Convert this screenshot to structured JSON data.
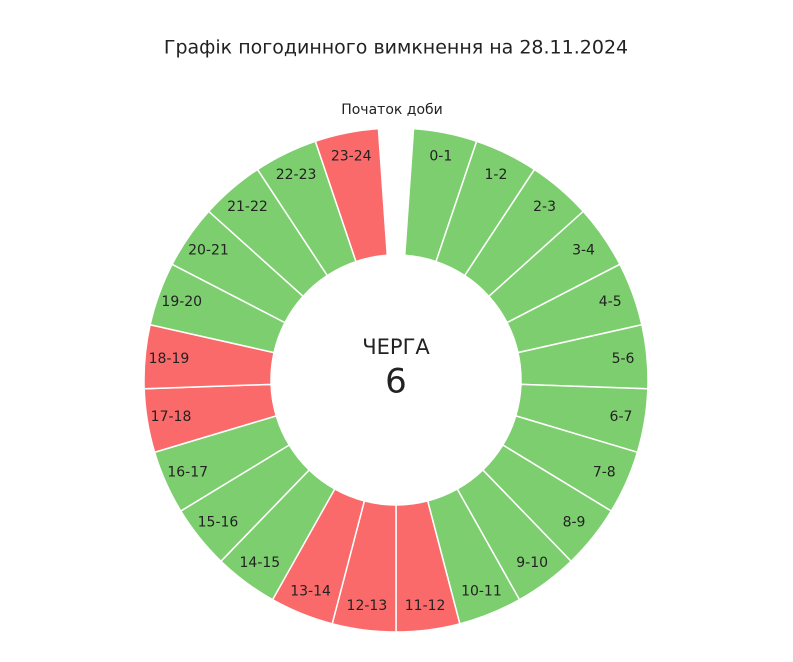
{
  "chart_data": {
    "type": "donut",
    "title": "Графік погодинного вимкнення на 28.11.2024",
    "annotation": "Початок доби",
    "center_label": "ЧЕРГА",
    "center_value": 6,
    "categories": [
      "0-1",
      "1-2",
      "2-3",
      "3-4",
      "4-5",
      "5-6",
      "6-7",
      "7-8",
      "8-9",
      "9-10",
      "10-11",
      "11-12",
      "12-13",
      "13-14",
      "14-15",
      "15-16",
      "16-17",
      "17-18",
      "18-19",
      "19-20",
      "20-21",
      "21-22",
      "22-23",
      "23-24"
    ],
    "values": [
      1,
      1,
      1,
      1,
      1,
      1,
      1,
      1,
      1,
      1,
      1,
      1,
      1,
      1,
      1,
      1,
      1,
      1,
      1,
      1,
      1,
      1,
      1,
      1
    ],
    "colors": [
      "#7dce6e",
      "#7dce6e",
      "#7dce6e",
      "#7dce6e",
      "#7dce6e",
      "#7dce6e",
      "#7dce6e",
      "#7dce6e",
      "#7dce6e",
      "#7dce6e",
      "#7dce6e",
      "#fb6a6a",
      "#fb6a6a",
      "#fb6a6a",
      "#7dce6e",
      "#7dce6e",
      "#7dce6e",
      "#fb6a6a",
      "#fb6a6a",
      "#7dce6e",
      "#7dce6e",
      "#7dce6e",
      "#7dce6e",
      "#fb6a6a"
    ]
  }
}
